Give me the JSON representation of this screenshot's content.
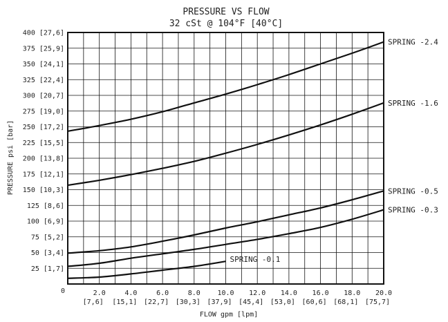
{
  "chart_data": {
    "type": "line",
    "title": "PRESSURE VS FLOW",
    "subtitle": "32 cSt @ 104°F [40°C]",
    "xlabel": "FLOW gpm [lpm]",
    "ylabel": "PRESSURE psi [bar]",
    "xlim": [
      0,
      20
    ],
    "ylim": [
      0,
      400
    ],
    "grid": true,
    "x_ticks": [
      {
        "value": 0,
        "label": "0",
        "sub": ""
      },
      {
        "value": 2,
        "label": "2.0",
        "sub": "[7,6]"
      },
      {
        "value": 4,
        "label": "4.0",
        "sub": "[15,1]"
      },
      {
        "value": 6,
        "label": "6.0",
        "sub": "[22,7]"
      },
      {
        "value": 8,
        "label": "8.0",
        "sub": "[30,3]"
      },
      {
        "value": 10,
        "label": "10.0",
        "sub": "[37,9]"
      },
      {
        "value": 12,
        "label": "12.0",
        "sub": "[45,4]"
      },
      {
        "value": 14,
        "label": "14.0",
        "sub": "[53,0]"
      },
      {
        "value": 16,
        "label": "16.0",
        "sub": "[60,6]"
      },
      {
        "value": 18,
        "label": "18.0",
        "sub": "[68,1]"
      },
      {
        "value": 20,
        "label": "20.0",
        "sub": "[75,7]"
      }
    ],
    "y_ticks": [
      {
        "value": 25,
        "label": "25 [1,7]"
      },
      {
        "value": 50,
        "label": "50 [3,4]"
      },
      {
        "value": 75,
        "label": "75 [5,2]"
      },
      {
        "value": 100,
        "label": "100 [6,9]"
      },
      {
        "value": 125,
        "label": "125 [8,6]"
      },
      {
        "value": 150,
        "label": "150 [10,3]"
      },
      {
        "value": 175,
        "label": "175 [12,1]"
      },
      {
        "value": 200,
        "label": "200 [13,8]"
      },
      {
        "value": 225,
        "label": "225 [15,5]"
      },
      {
        "value": 250,
        "label": "250 [17,2]"
      },
      {
        "value": 275,
        "label": "275 [19,0]"
      },
      {
        "value": 300,
        "label": "300 [20,7]"
      },
      {
        "value": 325,
        "label": "325 [22,4]"
      },
      {
        "value": 350,
        "label": "350 [24,1]"
      },
      {
        "value": 375,
        "label": "375 [25,9]"
      },
      {
        "value": 400,
        "label": "400 [27,6]"
      }
    ],
    "series": [
      {
        "name": "SPRING -2.4",
        "x": [
          0,
          2,
          4,
          6,
          8,
          10,
          12,
          14,
          16,
          18,
          20
        ],
        "y": [
          243,
          252,
          262,
          274,
          288,
          302,
          317,
          333,
          350,
          367,
          385
        ]
      },
      {
        "name": "SPRING -1.6",
        "x": [
          0,
          2,
          4,
          6,
          8,
          10,
          12,
          14,
          16,
          18,
          20
        ],
        "y": [
          157,
          165,
          174,
          184,
          195,
          208,
          222,
          237,
          253,
          270,
          288
        ]
      },
      {
        "name": "SPRING -0.5",
        "x": [
          0,
          2,
          4,
          6,
          8,
          10,
          12,
          14,
          16,
          18,
          20
        ],
        "y": [
          49,
          53,
          59,
          68,
          78,
          89,
          99,
          110,
          121,
          134,
          148
        ]
      },
      {
        "name": "SPRING -0.3",
        "x": [
          0,
          2,
          4,
          6,
          8,
          10,
          12,
          14,
          16,
          18,
          20
        ],
        "y": [
          28,
          33,
          41,
          48,
          55,
          63,
          71,
          80,
          90,
          103,
          118
        ]
      },
      {
        "name": "SPRING -0.1",
        "x": [
          0,
          2,
          4,
          6,
          8,
          10
        ],
        "y": [
          9,
          11,
          16,
          22,
          28,
          36
        ]
      }
    ]
  }
}
